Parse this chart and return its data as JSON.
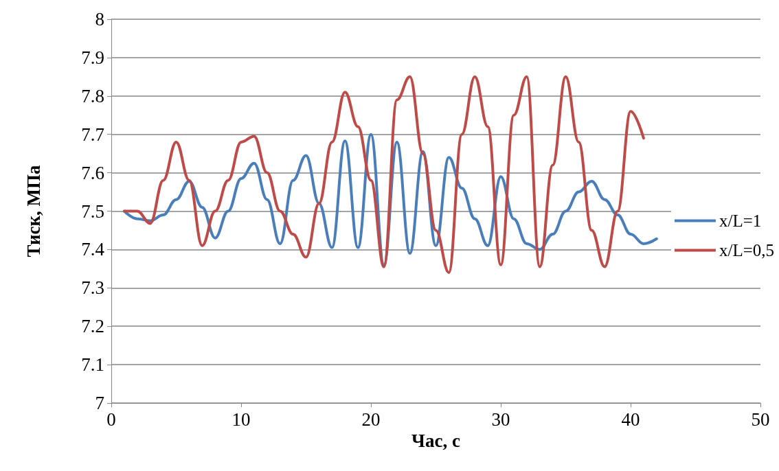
{
  "chart_data": {
    "type": "line",
    "xlabel": "Час, с",
    "ylabel": "Тиск, МПа",
    "xlim": [
      0,
      50
    ],
    "xticks": [
      0,
      10,
      20,
      30,
      40,
      50
    ],
    "ylim": [
      7,
      8
    ],
    "yticks": [
      7,
      7.1,
      7.2,
      7.3,
      7.4,
      7.5,
      7.6,
      7.7,
      7.8,
      7.9,
      8
    ],
    "grid": "y",
    "legend": "right",
    "marker": "none",
    "line_style": "solid",
    "series": [
      {
        "name": "x/L=1",
        "color": "#4a7ebb",
        "x": [
          1,
          2,
          3,
          4,
          5,
          6,
          7,
          8,
          9,
          10,
          11,
          12,
          13,
          14,
          15,
          16,
          17,
          18,
          19,
          20,
          21,
          22,
          23,
          24,
          25,
          26,
          27,
          28,
          29,
          30,
          31,
          32,
          33,
          34,
          35,
          36,
          37,
          38,
          39,
          40,
          41,
          42
        ],
        "values": [
          7.5,
          7.48,
          7.475,
          7.49,
          7.53,
          7.578,
          7.51,
          7.43,
          7.5,
          7.585,
          7.625,
          7.53,
          7.415,
          7.58,
          7.645,
          7.52,
          7.405,
          7.683,
          7.405,
          7.7,
          7.36,
          7.68,
          7.39,
          7.655,
          7.41,
          7.64,
          7.56,
          7.48,
          7.41,
          7.59,
          7.48,
          7.415,
          7.4,
          7.44,
          7.5,
          7.55,
          7.578,
          7.53,
          7.49,
          7.44,
          7.415,
          7.428
        ]
      },
      {
        "name": "x/L=0,5",
        "color": "#be4b48",
        "x": [
          1,
          2,
          3,
          4,
          5,
          6,
          7,
          8,
          9,
          10,
          11,
          12,
          13,
          14,
          15,
          16,
          17,
          18,
          19,
          20,
          21,
          22,
          23,
          24,
          25,
          26,
          27,
          28,
          29,
          30,
          31,
          32,
          33,
          34,
          35,
          36,
          37,
          38,
          39,
          40,
          41
        ],
        "values": [
          7.5,
          7.5,
          7.468,
          7.58,
          7.68,
          7.58,
          7.41,
          7.5,
          7.58,
          7.68,
          7.695,
          7.6,
          7.5,
          7.44,
          7.38,
          7.52,
          7.68,
          7.81,
          7.72,
          7.58,
          7.355,
          7.79,
          7.85,
          7.65,
          7.45,
          7.34,
          7.7,
          7.85,
          7.72,
          7.36,
          7.75,
          7.85,
          7.355,
          7.62,
          7.85,
          7.68,
          7.45,
          7.355,
          7.5,
          7.76,
          7.69
        ]
      }
    ]
  }
}
